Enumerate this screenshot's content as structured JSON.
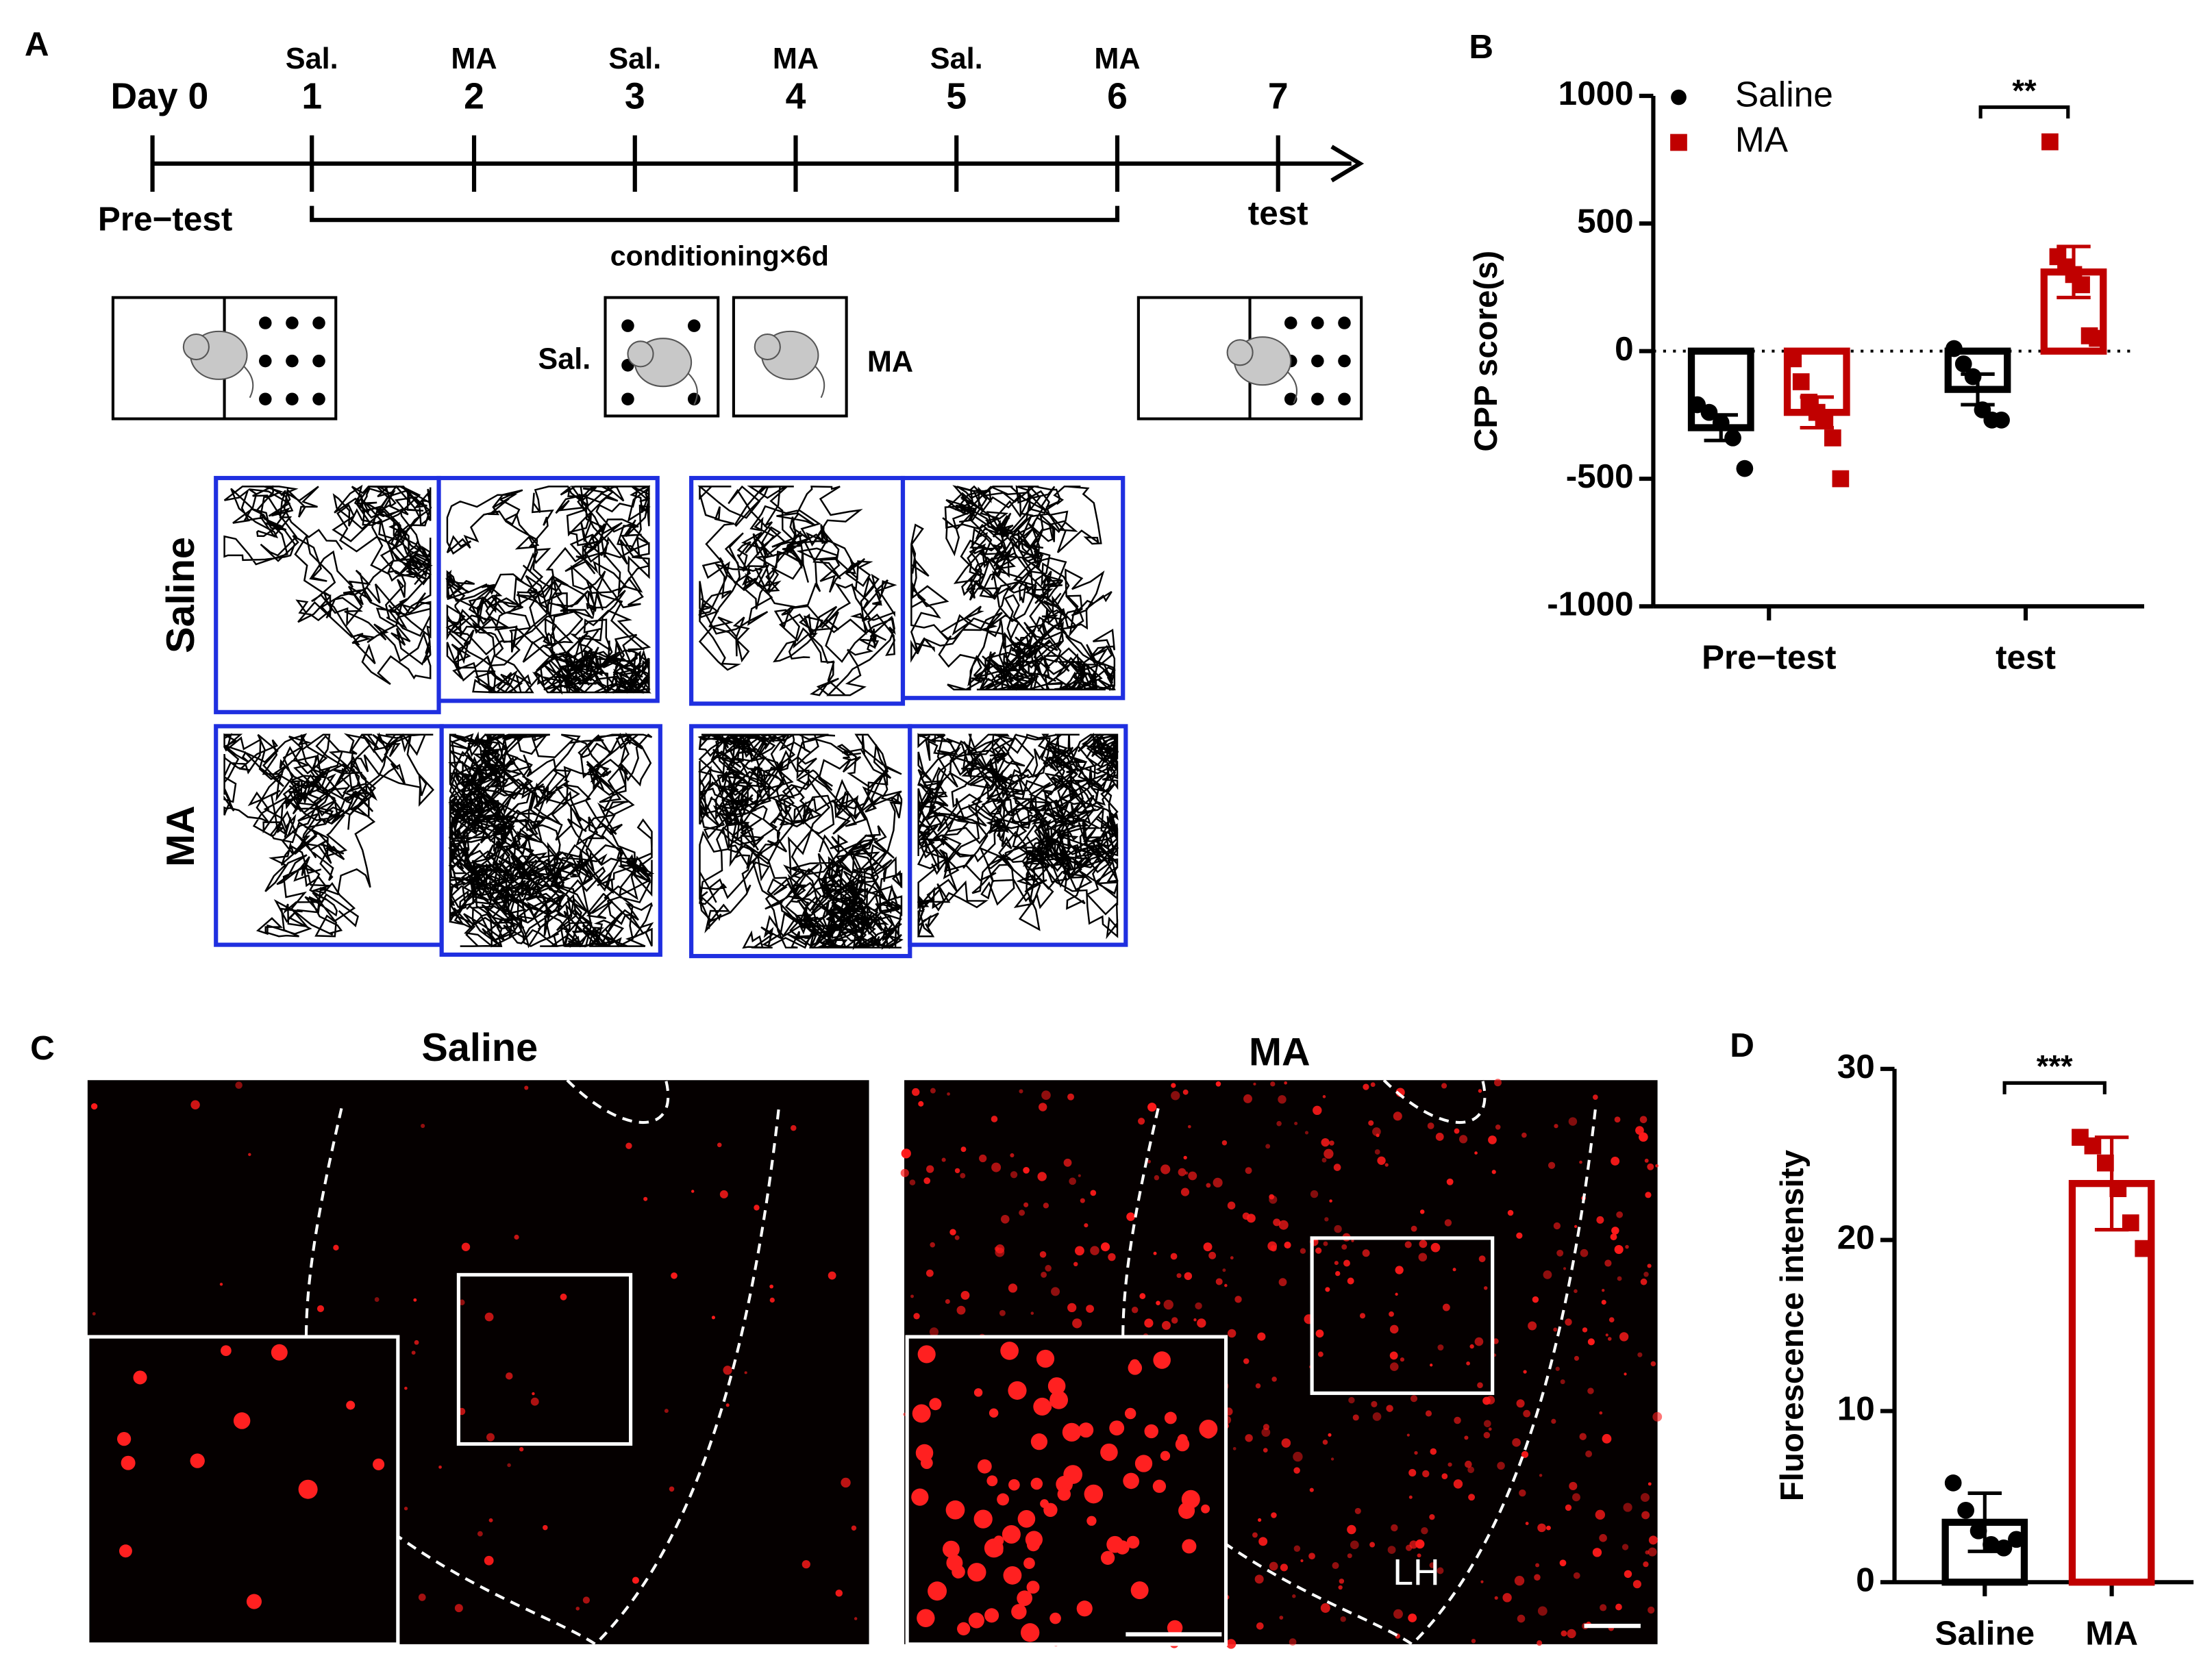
{
  "panel_a": {
    "label": "A",
    "timeline": [
      {
        "day": "Day 0"
      },
      {
        "treatment": "Sal.",
        "day": "1"
      },
      {
        "treatment": "MA",
        "day": "2"
      },
      {
        "treatment": "Sal.",
        "day": "3"
      },
      {
        "treatment": "MA",
        "day": "4"
      },
      {
        "treatment": "Sal.",
        "day": "5"
      },
      {
        "treatment": "MA",
        "day": "6"
      },
      {
        "day": "7"
      }
    ],
    "pretest": "Pre−test",
    "test": "test",
    "conditioning": "conditioning×6d",
    "chamber_labels": [
      "Sal.",
      "MA"
    ],
    "row_labels": [
      "Saline",
      "MA"
    ]
  },
  "panel_c": {
    "label": "C",
    "image_titles": [
      "Saline",
      "MA"
    ],
    "region": "LH"
  },
  "chart_data": [
    {
      "type": "bar",
      "label": "B",
      "ylabel": "CPP score(s)",
      "categories": [
        "Pre−test",
        "test"
      ],
      "series": [
        {
          "name": "Saline",
          "color": "#000000",
          "values": [
            -300,
            -150
          ],
          "errors": [
            50,
            60
          ],
          "points": [
            [
              -210,
              -240,
              -280,
              -340,
              -460
            ],
            [
              10,
              -50,
              -100,
              -230,
              -270,
              -270
            ]
          ]
        },
        {
          "name": "MA",
          "color": "#c00000",
          "values": [
            -240,
            310
          ],
          "errors": [
            60,
            100
          ],
          "points": [
            [
              -30,
              -120,
              -200,
              -240,
              -270,
              -340,
              -500
            ],
            [
              820,
              370,
              330,
              300,
              260,
              60,
              50
            ]
          ]
        }
      ],
      "ylim": [
        -1000,
        1000
      ],
      "yticks": [
        -1000,
        -500,
        0,
        500,
        1000
      ],
      "legend": "upper-left",
      "annotation": "**"
    },
    {
      "type": "bar",
      "label": "D",
      "ylabel": "Fluorescence intensity",
      "categories": [
        "Saline",
        "MA"
      ],
      "values": [
        3.5,
        23.3
      ],
      "errors": [
        1.7,
        2.7
      ],
      "colors": [
        "#000000",
        "#c00000"
      ],
      "points": [
        [
          5.8,
          4.2,
          3.0,
          2.2,
          2.0,
          2.5
        ],
        [
          26,
          25.5,
          24.5,
          23,
          21,
          19.5
        ]
      ],
      "ylim": [
        0,
        30
      ],
      "yticks": [
        0,
        10,
        20,
        30
      ],
      "annotation": "***"
    }
  ]
}
